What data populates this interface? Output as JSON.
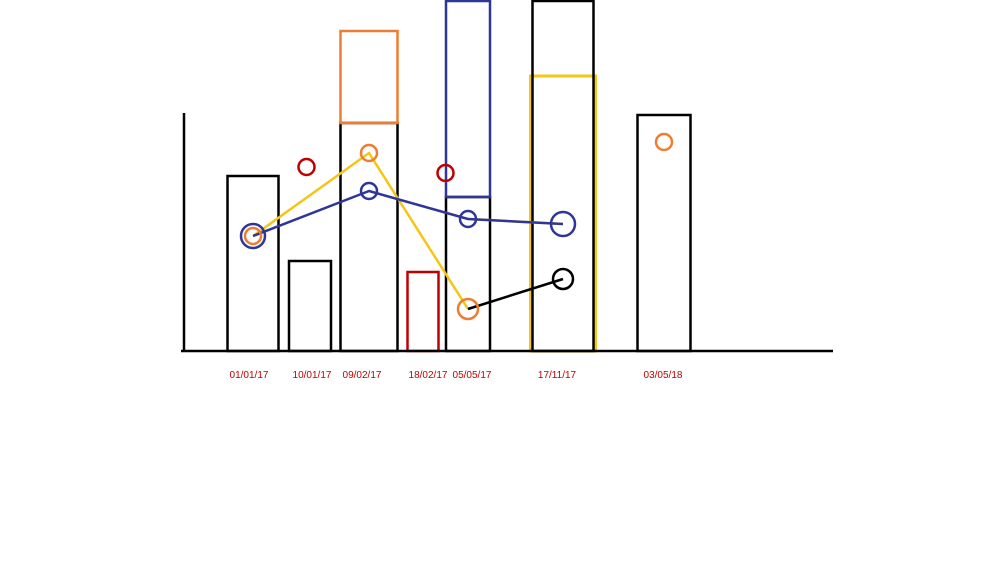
{
  "chart_data": {
    "type": "bar",
    "title": "",
    "xlabel": "",
    "ylabel": "",
    "ylim": [
      0,
      350
    ],
    "categories": [
      "01/01/17",
      "10/01/17",
      "09/02/17",
      "18/02/17",
      "05/05/17",
      "17/11/17",
      "03/05/18"
    ],
    "bars": [
      {
        "category": "01/01/17",
        "value": 175,
        "color": "#000000"
      },
      {
        "category": "10/01/17",
        "value": 90,
        "color": "#000000"
      },
      {
        "category": "09/02/17",
        "value": 228,
        "color": "#000000",
        "extension": {
          "value": 92,
          "color": "#ed7d31"
        }
      },
      {
        "category": "18/02/17",
        "value": 79,
        "color": "#c00000"
      },
      {
        "category": "05/05/17",
        "value": 154,
        "color": "#000000",
        "extension": {
          "value": 196,
          "color": "#2f3699"
        }
      },
      {
        "category": "17/11/17",
        "value": 350,
        "color": "#000000",
        "overlay": {
          "value": 275,
          "color": "#f5c518"
        }
      },
      {
        "category": "03/05/18",
        "value": 236,
        "color": "#000000"
      }
    ],
    "series": [
      {
        "color": "#f5c518",
        "points": [
          {
            "category": "01/01/17",
            "y": 115
          },
          {
            "category": "09/02/17",
            "y": 198
          },
          {
            "category": "05/05/17",
            "y": 42
          }
        ]
      },
      {
        "color": "#f5c518",
        "points": [
          {
            "category": "05/05/17",
            "y": 132
          },
          {
            "category": "17/11/17",
            "y": 127
          }
        ]
      },
      {
        "color": "#2f3699",
        "points": [
          {
            "category": "01/01/17",
            "y": 115
          },
          {
            "category": "09/02/17",
            "y": 160
          },
          {
            "category": "05/05/17",
            "y": 132
          },
          {
            "category": "17/11/17",
            "y": 127
          }
        ]
      },
      {
        "color": "#000000",
        "points": [
          {
            "category": "05/05/17",
            "y": 42
          },
          {
            "category": "17/11/17",
            "y": 72
          }
        ]
      }
    ],
    "markers": [
      {
        "category": "01/01/17",
        "y": 115,
        "color": "#2f3699",
        "size": "large"
      },
      {
        "category": "01/01/17",
        "y": 115,
        "color": "#ed7d31",
        "size": "small"
      },
      {
        "category": "09/02/17",
        "y": 198,
        "color": "#ed7d31",
        "size": "small"
      },
      {
        "category": "09/02/17",
        "y": 160,
        "color": "#2f3699",
        "size": "small"
      },
      {
        "category": "05/05/17",
        "y": 132,
        "color": "#2f3699",
        "size": "small"
      },
      {
        "category": "05/05/17",
        "y": 42,
        "color": "#ed7d31",
        "size": "medium"
      },
      {
        "category": "17/11/17",
        "y": 127,
        "color": "#2f3699",
        "size": "large"
      },
      {
        "category": "17/11/17",
        "y": 72,
        "color": "#000000",
        "size": "medium"
      },
      {
        "category": "03/05/18",
        "y": 209,
        "color": "#ed7d31",
        "size": "small"
      }
    ],
    "extra_markers": [
      {
        "between": [
          "10/01/17",
          "09/02/17"
        ],
        "y": 184,
        "color": "#c00000"
      },
      {
        "between": [
          "18/02/17",
          "05/05/17"
        ],
        "y": 178,
        "color": "#c00000"
      }
    ],
    "tick_color": "#c00000",
    "grid": false
  }
}
